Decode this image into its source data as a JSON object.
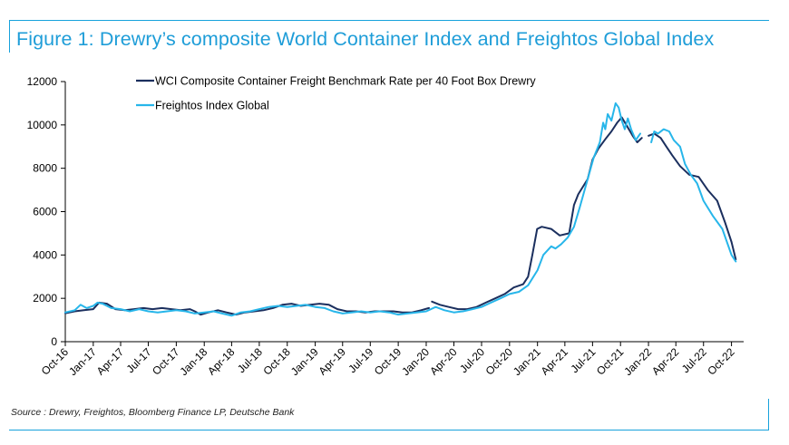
{
  "title": "Figure 1: Drewry’s composite World Container Index and Freightos Global Index",
  "source": "Source : Drewry, Freightos, Bloomberg Finance LP, Deutsche Bank",
  "colors": {
    "accent": "#1e9dd8",
    "wci": "#1b2f5e",
    "fbx": "#27b6ea"
  },
  "chart_data": {
    "type": "line",
    "ylim": [
      0,
      12000
    ],
    "yticks": [
      0,
      2000,
      4000,
      6000,
      8000,
      10000,
      12000
    ],
    "xlim": [
      "2016-10-01",
      "2022-11-10"
    ],
    "xtick_labels": [
      "Oct-16",
      "Jan-17",
      "Apr-17",
      "Jul-17",
      "Oct-17",
      "Jan-18",
      "Apr-18",
      "Jul-18",
      "Oct-18",
      "Jan-19",
      "Apr-19",
      "Jul-19",
      "Oct-19",
      "Jan-20",
      "Apr-20",
      "Jul-20",
      "Oct-20",
      "Jan-21",
      "Apr-21",
      "Jul-21",
      "Oct-21",
      "Jan-22",
      "Apr-22",
      "Jul-22",
      "Oct-22"
    ],
    "legend": "top-left",
    "series": [
      {
        "name": "WCI Composite Container Freight Benchmark Rate per 40 Foot Box Drewry",
        "color": "#1b2f5e",
        "segments": [
          [
            [
              "2016-10-01",
              1310
            ],
            [
              "2016-11-01",
              1400
            ],
            [
              "2016-12-01",
              1450
            ],
            [
              "2017-01-01",
              1500
            ],
            [
              "2017-01-20",
              1800
            ],
            [
              "2017-02-15",
              1750
            ],
            [
              "2017-03-15",
              1500
            ],
            [
              "2017-04-15",
              1450
            ],
            [
              "2017-05-15",
              1500
            ],
            [
              "2017-06-15",
              1550
            ],
            [
              "2017-07-15",
              1500
            ],
            [
              "2017-08-15",
              1550
            ],
            [
              "2017-09-15",
              1500
            ],
            [
              "2017-10-15",
              1450
            ],
            [
              "2017-11-15",
              1500
            ],
            [
              "2017-12-01",
              1400
            ],
            [
              "2017-12-20",
              1250
            ],
            [
              "2018-01-15",
              1350
            ],
            [
              "2018-02-15",
              1450
            ],
            [
              "2018-03-15",
              1350
            ],
            [
              "2018-04-15",
              1250
            ],
            [
              "2018-05-15",
              1350
            ],
            [
              "2018-06-15",
              1400
            ],
            [
              "2018-07-15",
              1450
            ],
            [
              "2018-08-15",
              1550
            ],
            [
              "2018-09-15",
              1700
            ],
            [
              "2018-10-15",
              1750
            ],
            [
              "2018-11-15",
              1650
            ],
            [
              "2018-12-15",
              1700
            ],
            [
              "2019-01-15",
              1750
            ],
            [
              "2019-02-15",
              1700
            ],
            [
              "2019-03-15",
              1500
            ],
            [
              "2019-04-15",
              1400
            ],
            [
              "2019-05-15",
              1400
            ],
            [
              "2019-06-15",
              1350
            ],
            [
              "2019-07-15",
              1400
            ],
            [
              "2019-08-15",
              1400
            ],
            [
              "2019-09-15",
              1400
            ],
            [
              "2019-10-15",
              1350
            ],
            [
              "2019-11-15",
              1350
            ],
            [
              "2019-12-15",
              1450
            ],
            [
              "2020-01-10",
              1550
            ]
          ],
          [
            [
              "2020-01-20",
              1850
            ],
            [
              "2020-02-15",
              1700
            ],
            [
              "2020-03-15",
              1600
            ],
            [
              "2020-04-15",
              1500
            ],
            [
              "2020-05-15",
              1500
            ],
            [
              "2020-06-15",
              1600
            ],
            [
              "2020-07-15",
              1800
            ],
            [
              "2020-08-15",
              2000
            ],
            [
              "2020-09-15",
              2200
            ],
            [
              "2020-10-15",
              2500
            ],
            [
              "2020-11-15",
              2650
            ],
            [
              "2020-12-01",
              3000
            ],
            [
              "2020-12-15",
              4000
            ],
            [
              "2020-12-31",
              5200
            ],
            [
              "2021-01-15",
              5300
            ],
            [
              "2021-02-15",
              5200
            ],
            [
              "2021-03-15",
              4900
            ],
            [
              "2021-04-15",
              5000
            ],
            [
              "2021-05-01",
              6300
            ],
            [
              "2021-05-15",
              6800
            ],
            [
              "2021-06-15",
              7500
            ],
            [
              "2021-07-01",
              8400
            ],
            [
              "2021-07-20",
              8900
            ],
            [
              "2021-08-15",
              9400
            ],
            [
              "2021-09-01",
              9700
            ],
            [
              "2021-09-20",
              10100
            ],
            [
              "2021-10-05",
              10350
            ],
            [
              "2021-10-20",
              10000
            ],
            [
              "2021-11-10",
              9500
            ],
            [
              "2021-11-25",
              9200
            ],
            [
              "2021-12-10",
              9400
            ]
          ],
          [
            [
              "2022-01-01",
              9500
            ],
            [
              "2022-01-20",
              9600
            ],
            [
              "2022-02-10",
              9400
            ],
            [
              "2022-03-01",
              9000
            ],
            [
              "2022-03-20",
              8600
            ],
            [
              "2022-04-15",
              8100
            ],
            [
              "2022-05-15",
              7700
            ],
            [
              "2022-06-15",
              7600
            ],
            [
              "2022-07-15",
              7000
            ],
            [
              "2022-08-15",
              6500
            ],
            [
              "2022-09-10",
              5500
            ],
            [
              "2022-10-01",
              4600
            ],
            [
              "2022-10-15",
              3800
            ]
          ]
        ]
      },
      {
        "name": "Freightos Index Global",
        "color": "#27b6ea",
        "segments": [
          [
            [
              "2016-10-01",
              1350
            ],
            [
              "2016-11-01",
              1450
            ],
            [
              "2016-11-20",
              1700
            ],
            [
              "2016-12-10",
              1550
            ],
            [
              "2017-01-01",
              1650
            ],
            [
              "2017-01-15",
              1800
            ],
            [
              "2017-02-01",
              1750
            ],
            [
              "2017-03-01",
              1550
            ],
            [
              "2017-04-01",
              1500
            ],
            [
              "2017-05-01",
              1400
            ],
            [
              "2017-06-01",
              1500
            ],
            [
              "2017-07-01",
              1400
            ],
            [
              "2017-08-01",
              1350
            ],
            [
              "2017-09-01",
              1400
            ],
            [
              "2017-10-01",
              1450
            ],
            [
              "2017-11-01",
              1400
            ],
            [
              "2017-12-01",
              1300
            ],
            [
              "2018-01-01",
              1350
            ],
            [
              "2018-02-01",
              1400
            ],
            [
              "2018-03-01",
              1300
            ],
            [
              "2018-04-01",
              1200
            ],
            [
              "2018-05-01",
              1350
            ],
            [
              "2018-06-01",
              1400
            ],
            [
              "2018-07-01",
              1500
            ],
            [
              "2018-08-01",
              1600
            ],
            [
              "2018-09-01",
              1650
            ],
            [
              "2018-10-01",
              1600
            ],
            [
              "2018-11-01",
              1650
            ],
            [
              "2018-12-01",
              1700
            ],
            [
              "2019-01-01",
              1600
            ],
            [
              "2019-02-01",
              1550
            ],
            [
              "2019-03-01",
              1400
            ],
            [
              "2019-04-01",
              1300
            ],
            [
              "2019-05-01",
              1350
            ],
            [
              "2019-06-01",
              1400
            ],
            [
              "2019-07-01",
              1350
            ],
            [
              "2019-08-01",
              1400
            ],
            [
              "2019-09-01",
              1350
            ],
            [
              "2019-10-01",
              1250
            ],
            [
              "2019-11-01",
              1300
            ],
            [
              "2019-12-01",
              1350
            ],
            [
              "2020-01-01",
              1400
            ],
            [
              "2020-02-01",
              1600
            ],
            [
              "2020-03-01",
              1450
            ],
            [
              "2020-04-01",
              1350
            ],
            [
              "2020-05-01",
              1400
            ],
            [
              "2020-06-01",
              1500
            ],
            [
              "2020-07-01",
              1600
            ],
            [
              "2020-08-01",
              1800
            ],
            [
              "2020-09-01",
              2000
            ],
            [
              "2020-10-01",
              2200
            ],
            [
              "2020-11-01",
              2300
            ],
            [
              "2020-12-01",
              2600
            ],
            [
              "2021-01-01",
              3300
            ],
            [
              "2021-01-20",
              4000
            ],
            [
              "2021-02-15",
              4400
            ],
            [
              "2021-03-01",
              4300
            ],
            [
              "2021-03-20",
              4500
            ],
            [
              "2021-04-10",
              4800
            ],
            [
              "2021-05-01",
              5300
            ],
            [
              "2021-05-20",
              6200
            ],
            [
              "2021-06-15",
              7500
            ],
            [
              "2021-07-05",
              8500
            ],
            [
              "2021-07-25",
              9200
            ],
            [
              "2021-08-05",
              10100
            ],
            [
              "2021-08-12",
              9800
            ],
            [
              "2021-08-20",
              10500
            ],
            [
              "2021-09-01",
              10200
            ],
            [
              "2021-09-15",
              11000
            ],
            [
              "2021-09-25",
              10800
            ],
            [
              "2021-10-05",
              10200
            ],
            [
              "2021-10-15",
              9800
            ],
            [
              "2021-10-25",
              10300
            ],
            [
              "2021-11-05",
              9800
            ],
            [
              "2021-11-20",
              9300
            ],
            [
              "2021-12-05",
              9600
            ]
          ],
          [
            [
              "2022-01-10",
              9200
            ],
            [
              "2022-01-20",
              9700
            ],
            [
              "2022-02-01",
              9600
            ],
            [
              "2022-02-20",
              9800
            ],
            [
              "2022-03-10",
              9700
            ],
            [
              "2022-03-25",
              9300
            ],
            [
              "2022-04-15",
              9000
            ],
            [
              "2022-05-01",
              8200
            ],
            [
              "2022-05-20",
              7700
            ],
            [
              "2022-06-10",
              7300
            ],
            [
              "2022-07-01",
              6500
            ],
            [
              "2022-08-01",
              5800
            ],
            [
              "2022-09-01",
              5200
            ],
            [
              "2022-10-01",
              4000
            ],
            [
              "2022-10-15",
              3700
            ]
          ]
        ]
      }
    ]
  }
}
